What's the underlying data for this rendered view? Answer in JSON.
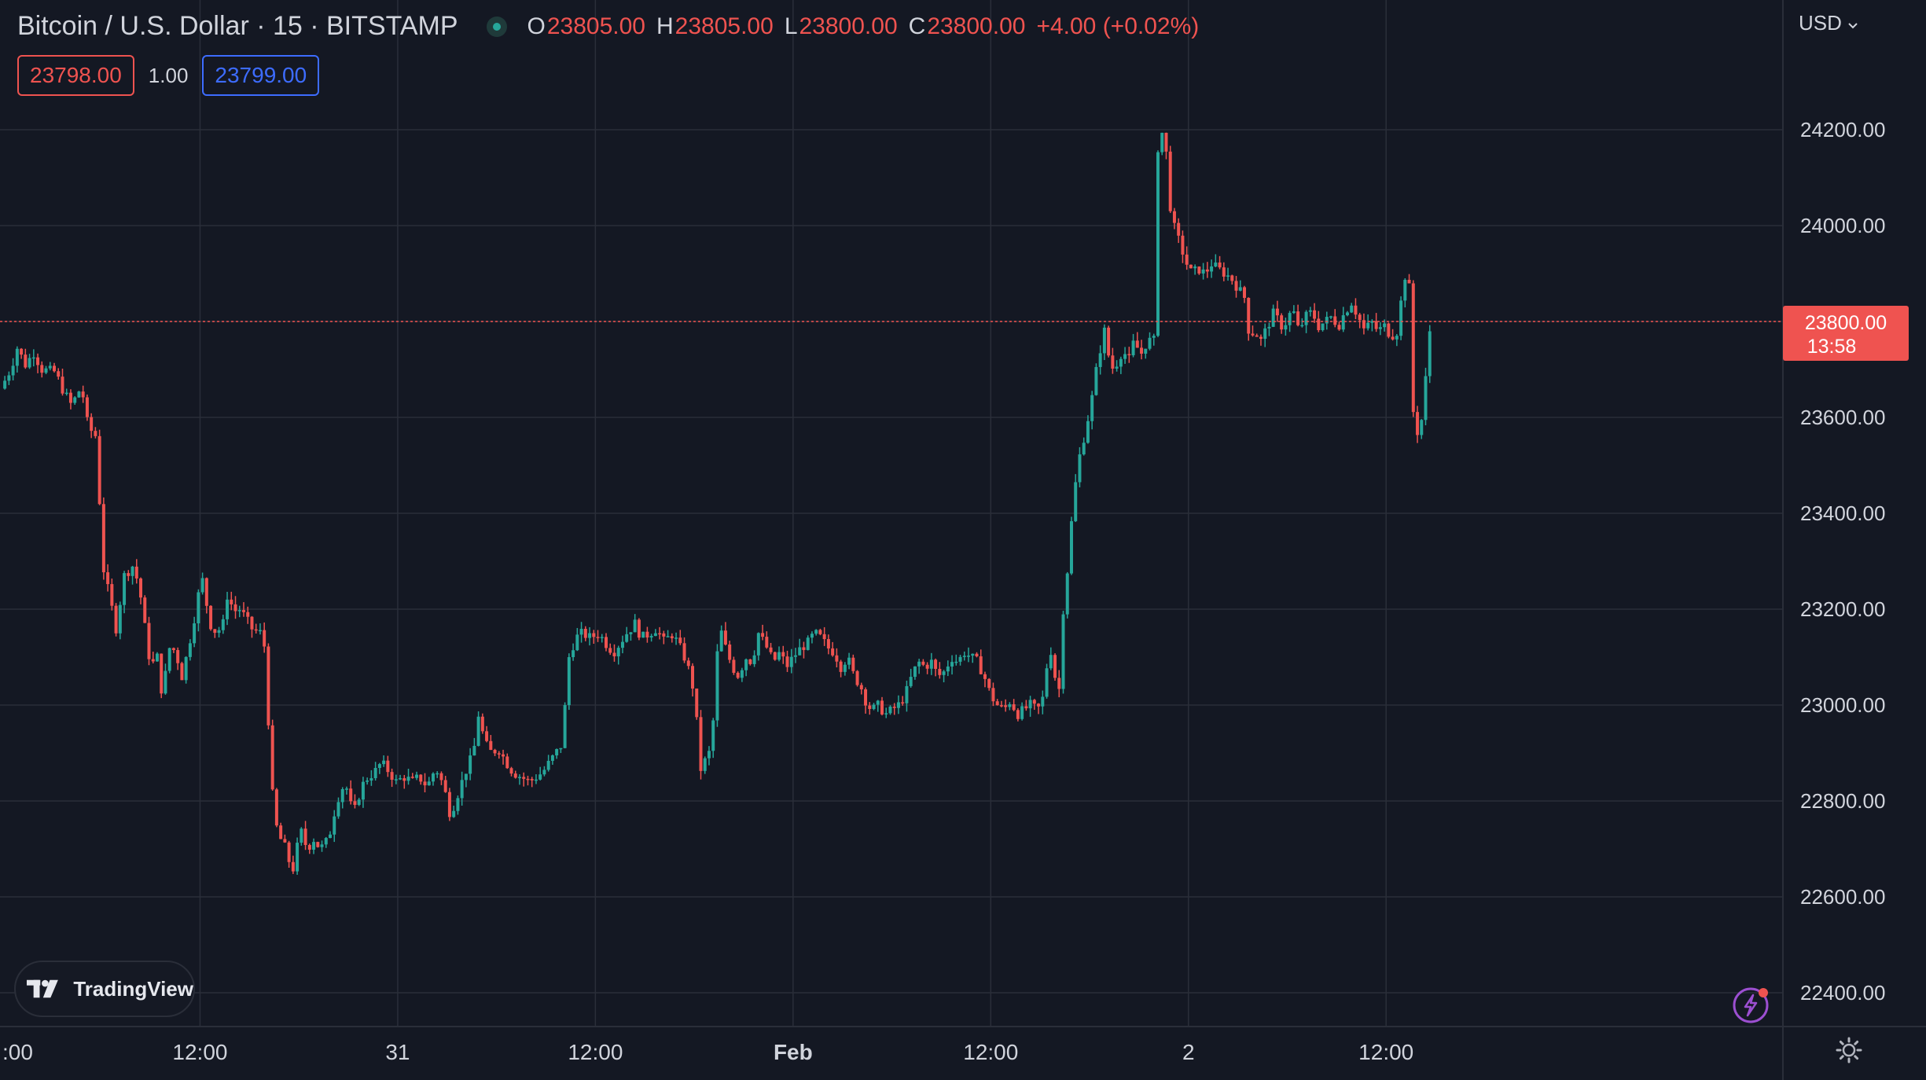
{
  "header": {
    "symbol": "Bitcoin / U.S. Dollar · 15 · BITSTAMP",
    "o_label": "O",
    "o_value": "23805.00",
    "h_label": "H",
    "h_value": "23805.00",
    "l_label": "L",
    "l_value": "23800.00",
    "c_label": "C",
    "c_value": "23800.00",
    "change": "+4.00 (+0.02%)"
  },
  "quotes": {
    "sell": "23798.00",
    "quantity": "1.00",
    "buy": "23799.00"
  },
  "currency_menu": "USD",
  "logo_text": "TradingView",
  "icons": [
    "tradingview-logo-icon",
    "chevron-down-icon",
    "lightning-icon",
    "gear-icon"
  ],
  "colors": {
    "up": "#26a69a",
    "down": "#ef5350",
    "background": "#141823",
    "grid": "#2a2e39",
    "price_tag": "#ef5350"
  },
  "chart_data": {
    "type": "candlestick",
    "price_tag": {
      "value": "23800.00",
      "countdown": "13:58"
    },
    "y_axis": {
      "ticks": [
        22400,
        22600,
        22800,
        23000,
        23200,
        23400,
        23600,
        23800,
        24000,
        24200
      ],
      "tick_labels": [
        "22400.00",
        "22600.00",
        "22800.00",
        "23000.00",
        "23200.00",
        "23400.00",
        "23600.00",
        "23800.00",
        "24000.00",
        "24200.00"
      ]
    },
    "x_axis": {
      "tick_labels": [
        ":00",
        "12:00",
        "31",
        "12:00",
        "Feb",
        "12:00",
        "2",
        "12:00"
      ],
      "tick_times": [
        0,
        12,
        24,
        36,
        48,
        60,
        72,
        84
      ],
      "bold": [
        false,
        false,
        false,
        false,
        true,
        false,
        false,
        false
      ]
    },
    "time_unit": "hours since the ':00' tick",
    "bar_interval_hours": 0.25,
    "series_path": [
      [
        -0.1,
        23660
      ],
      [
        0.5,
        23700
      ],
      [
        0.9,
        23745
      ],
      [
        1.4,
        23710
      ],
      [
        1.9,
        23735
      ],
      [
        2.4,
        23700
      ],
      [
        3.2,
        23695
      ],
      [
        3.7,
        23655
      ],
      [
        4.2,
        23625
      ],
      [
        4.8,
        23665
      ],
      [
        5.2,
        23580
      ],
      [
        5.7,
        23560
      ],
      [
        6.1,
        23290
      ],
      [
        6.6,
        23210
      ],
      [
        6.9,
        23160
      ],
      [
        7.4,
        23270
      ],
      [
        7.9,
        23290
      ],
      [
        8.3,
        23250
      ],
      [
        8.7,
        23150
      ],
      [
        9.0,
        23080
      ],
      [
        9.4,
        23100
      ],
      [
        9.7,
        23020
      ],
      [
        10.2,
        23130
      ],
      [
        10.6,
        23100
      ],
      [
        10.9,
        23060
      ],
      [
        11.3,
        23120
      ],
      [
        11.7,
        23190
      ],
      [
        12.1,
        23270
      ],
      [
        12.6,
        23170
      ],
      [
        13.0,
        23150
      ],
      [
        13.4,
        23170
      ],
      [
        13.7,
        23240
      ],
      [
        14.0,
        23195
      ],
      [
        14.4,
        23200
      ],
      [
        14.8,
        23180
      ],
      [
        15.1,
        23160
      ],
      [
        15.7,
        23150
      ],
      [
        16.0,
        23110
      ],
      [
        16.2,
        22920
      ],
      [
        16.5,
        22760
      ],
      [
        16.9,
        22720
      ],
      [
        17.2,
        22700
      ],
      [
        17.6,
        22650
      ],
      [
        18.1,
        22740
      ],
      [
        18.5,
        22700
      ],
      [
        18.9,
        22720
      ],
      [
        19.3,
        22700
      ],
      [
        19.8,
        22720
      ],
      [
        20.3,
        22800
      ],
      [
        20.8,
        22840
      ],
      [
        21.3,
        22770
      ],
      [
        21.8,
        22830
      ],
      [
        22.2,
        22850
      ],
      [
        22.6,
        22860
      ],
      [
        23.0,
        22880
      ],
      [
        23.5,
        22860
      ],
      [
        23.9,
        22840
      ],
      [
        24.4,
        22850
      ],
      [
        24.9,
        22840
      ],
      [
        25.3,
        22850
      ],
      [
        25.8,
        22830
      ],
      [
        26.3,
        22870
      ],
      [
        26.8,
        22830
      ],
      [
        27.2,
        22770
      ],
      [
        27.7,
        22820
      ],
      [
        28.1,
        22860
      ],
      [
        28.6,
        22900
      ],
      [
        28.9,
        22980
      ],
      [
        29.3,
        22920
      ],
      [
        29.7,
        22900
      ],
      [
        30.1,
        22910
      ],
      [
        30.6,
        22880
      ],
      [
        31.0,
        22860
      ],
      [
        31.5,
        22850
      ],
      [
        32.0,
        22840
      ],
      [
        32.4,
        22850
      ],
      [
        32.8,
        22860
      ],
      [
        33.2,
        22880
      ],
      [
        33.6,
        22900
      ],
      [
        34.0,
        22920
      ],
      [
        34.2,
        23020
      ],
      [
        34.4,
        23100
      ],
      [
        34.8,
        23140
      ],
      [
        35.2,
        23150
      ],
      [
        35.7,
        23140
      ],
      [
        36.2,
        23150
      ],
      [
        36.6,
        23130
      ],
      [
        37.1,
        23110
      ],
      [
        37.5,
        23130
      ],
      [
        37.9,
        23150
      ],
      [
        38.4,
        23170
      ],
      [
        38.8,
        23140
      ],
      [
        39.3,
        23150
      ],
      [
        39.7,
        23160
      ],
      [
        40.2,
        23130
      ],
      [
        40.6,
        23150
      ],
      [
        41.0,
        23130
      ],
      [
        41.4,
        23100
      ],
      [
        41.8,
        23060
      ],
      [
        42.1,
        23000
      ],
      [
        42.3,
        22860
      ],
      [
        42.6,
        22880
      ],
      [
        42.9,
        22900
      ],
      [
        43.2,
        22980
      ],
      [
        43.5,
        23170
      ],
      [
        43.9,
        23120
      ],
      [
        44.3,
        23080
      ],
      [
        44.7,
        23060
      ],
      [
        45.1,
        23100
      ],
      [
        45.5,
        23090
      ],
      [
        45.9,
        23150
      ],
      [
        46.4,
        23120
      ],
      [
        46.8,
        23090
      ],
      [
        47.2,
        23110
      ],
      [
        47.6,
        23080
      ],
      [
        48.0,
        23100
      ],
      [
        48.5,
        23120
      ],
      [
        48.9,
        23130
      ],
      [
        49.3,
        23150
      ],
      [
        49.7,
        23140
      ],
      [
        50.1,
        23120
      ],
      [
        50.5,
        23110
      ],
      [
        50.9,
        23080
      ],
      [
        51.3,
        23100
      ],
      [
        51.7,
        23060
      ],
      [
        52.1,
        23040
      ],
      [
        52.5,
        23000
      ],
      [
        52.8,
        22990
      ],
      [
        53.2,
        23000
      ],
      [
        53.6,
        22980
      ],
      [
        54.0,
        22990
      ],
      [
        54.4,
        23000
      ],
      [
        54.8,
        23020
      ],
      [
        55.2,
        23060
      ],
      [
        55.6,
        23090
      ],
      [
        56.0,
        23080
      ],
      [
        56.4,
        23090
      ],
      [
        56.8,
        23060
      ],
      [
        57.2,
        23070
      ],
      [
        57.6,
        23100
      ],
      [
        58.0,
        23090
      ],
      [
        58.4,
        23110
      ],
      [
        58.8,
        23100
      ],
      [
        59.2,
        23090
      ],
      [
        59.6,
        23060
      ],
      [
        60.0,
        23020
      ],
      [
        60.4,
        23000
      ],
      [
        60.8,
        22990
      ],
      [
        61.2,
        23010
      ],
      [
        61.6,
        22980
      ],
      [
        62.0,
        22990
      ],
      [
        62.4,
        23000
      ],
      [
        62.8,
        22990
      ],
      [
        63.1,
        23000
      ],
      [
        63.4,
        23080
      ],
      [
        63.7,
        23120
      ],
      [
        64.1,
        23000
      ],
      [
        64.4,
        23200
      ],
      [
        64.6,
        23260
      ],
      [
        64.9,
        23380
      ],
      [
        65.1,
        23450
      ],
      [
        65.4,
        23520
      ],
      [
        65.8,
        23580
      ],
      [
        66.2,
        23650
      ],
      [
        66.5,
        23720
      ],
      [
        66.9,
        23780
      ],
      [
        67.3,
        23700
      ],
      [
        67.6,
        23710
      ],
      [
        68.0,
        23740
      ],
      [
        68.4,
        23720
      ],
      [
        68.7,
        23760
      ],
      [
        69.1,
        23730
      ],
      [
        69.5,
        23760
      ],
      [
        69.9,
        23760
      ],
      [
        70.1,
        24150
      ],
      [
        70.3,
        24200
      ],
      [
        70.6,
        24180
      ],
      [
        70.8,
        24060
      ],
      [
        71.1,
        24000
      ],
      [
        71.3,
        23980
      ],
      [
        71.6,
        23950
      ],
      [
        71.9,
        23920
      ],
      [
        72.2,
        23900
      ],
      [
        72.6,
        23910
      ],
      [
        73.0,
        23900
      ],
      [
        73.4,
        23920
      ],
      [
        73.8,
        23910
      ],
      [
        74.2,
        23900
      ],
      [
        74.6,
        23890
      ],
      [
        75.0,
        23870
      ],
      [
        75.4,
        23850
      ],
      [
        75.7,
        23770
      ],
      [
        76.0,
        23780
      ],
      [
        76.4,
        23760
      ],
      [
        76.8,
        23790
      ],
      [
        77.2,
        23820
      ],
      [
        77.6,
        23790
      ],
      [
        78.0,
        23800
      ],
      [
        78.3,
        23830
      ],
      [
        78.7,
        23780
      ],
      [
        79.1,
        23810
      ],
      [
        79.5,
        23820
      ],
      [
        79.9,
        23790
      ],
      [
        80.3,
        23800
      ],
      [
        80.7,
        23810
      ],
      [
        81.1,
        23790
      ],
      [
        81.5,
        23820
      ],
      [
        81.9,
        23840
      ],
      [
        82.3,
        23810
      ],
      [
        82.7,
        23780
      ],
      [
        83.1,
        23800
      ],
      [
        83.5,
        23780
      ],
      [
        83.9,
        23790
      ],
      [
        84.3,
        23770
      ],
      [
        84.7,
        23780
      ],
      [
        85.1,
        23900
      ],
      [
        85.4,
        23870
      ],
      [
        85.6,
        23620
      ],
      [
        85.9,
        23570
      ],
      [
        86.2,
        23600
      ],
      [
        86.5,
        23720
      ],
      [
        86.7,
        23800
      ]
    ],
    "last_bar": {
      "open": 23805.0,
      "high": 23805.0,
      "low": 23800.0,
      "close": 23800.0
    }
  }
}
